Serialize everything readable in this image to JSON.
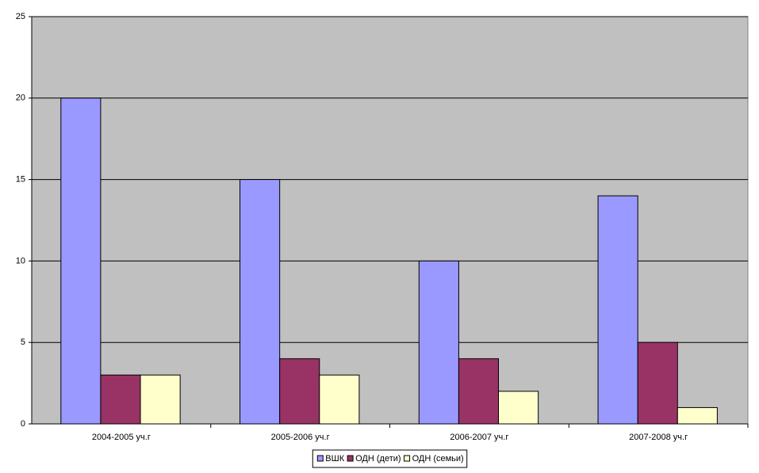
{
  "chart_data": {
    "type": "bar",
    "categories": [
      "2004-2005 уч.г",
      "2005-2006 уч.г",
      "2006-2007 уч.г",
      "2007-2008 уч.г"
    ],
    "series": [
      {
        "name": "ВШК",
        "color": "#9999ff",
        "values": [
          20,
          15,
          10,
          14
        ]
      },
      {
        "name": "ОДН (дети)",
        "color": "#993366",
        "values": [
          3,
          4,
          4,
          5
        ]
      },
      {
        "name": "ОДН (семьи)",
        "color": "#ffffcc",
        "values": [
          3,
          3,
          2,
          1
        ]
      }
    ],
    "ylim": [
      0,
      25
    ],
    "yticks": [
      0,
      5,
      10,
      15,
      20,
      25
    ],
    "grid": true,
    "legend": "bottom"
  }
}
